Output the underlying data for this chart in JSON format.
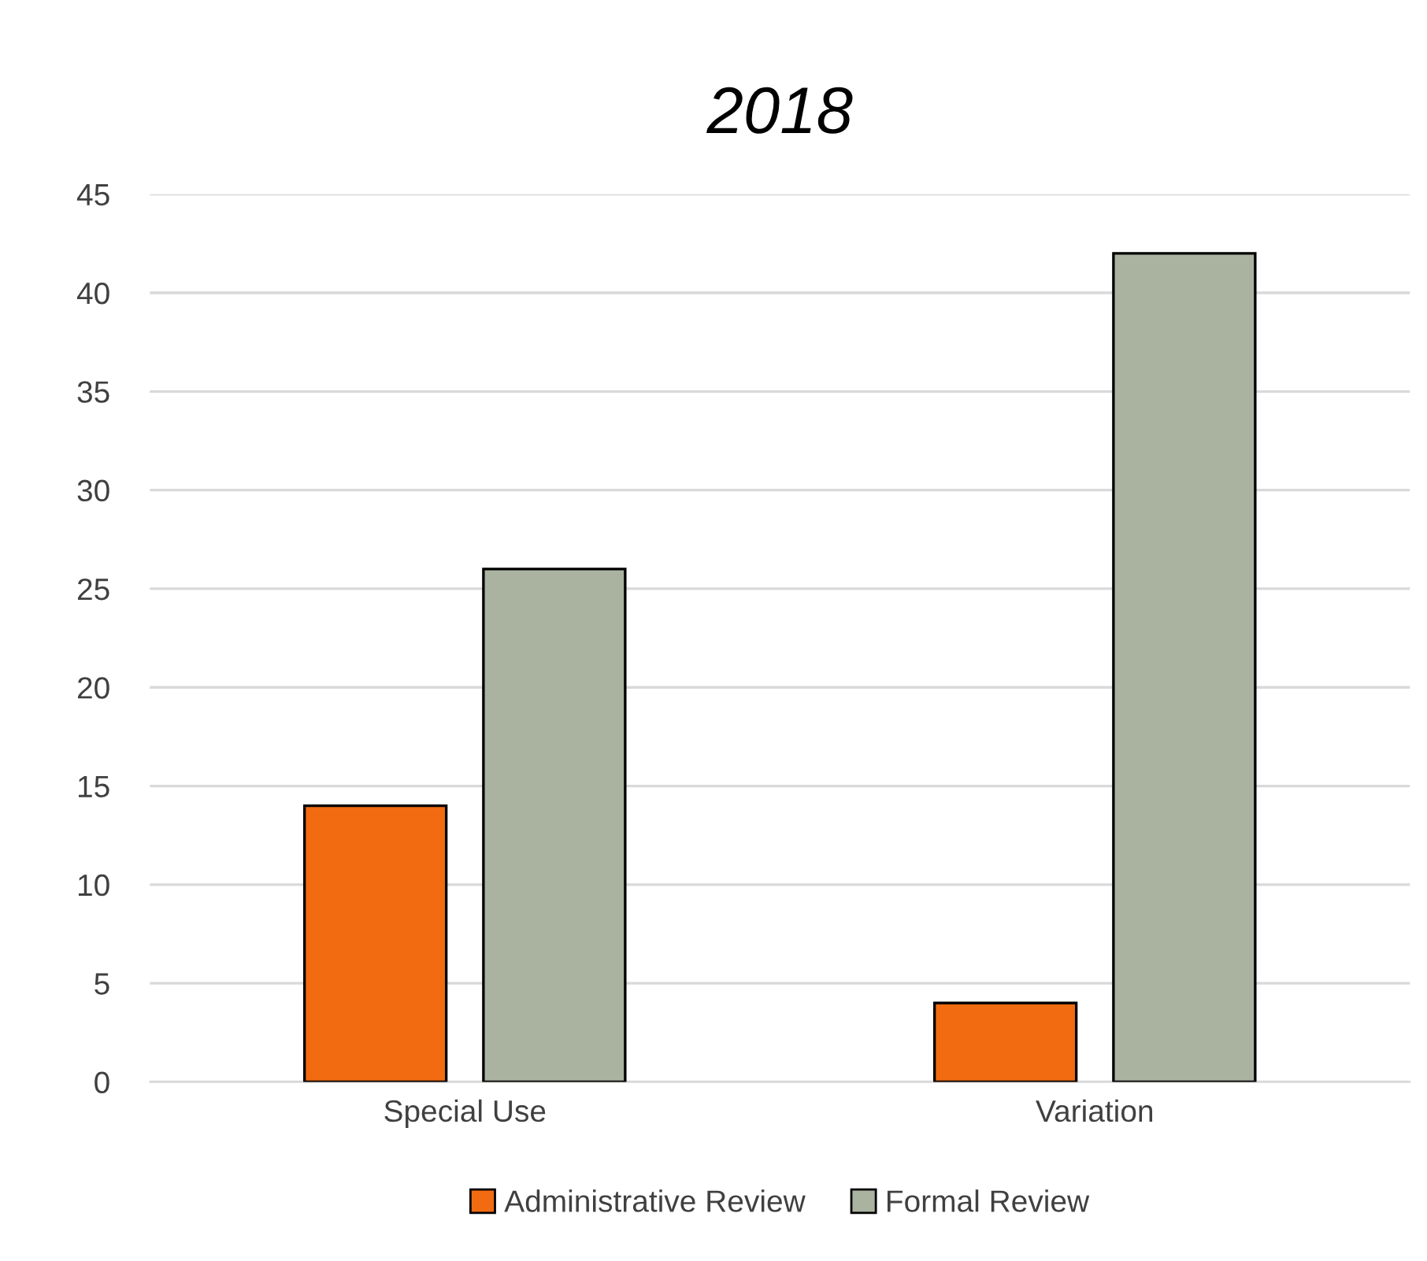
{
  "chart_data": {
    "type": "bar",
    "title": "2018",
    "categories": [
      "Special Use",
      "Variation"
    ],
    "series": [
      {
        "name": "Administrative Review",
        "color": "#f26b10",
        "values": [
          14,
          4
        ]
      },
      {
        "name": "Formal Review",
        "color": "#aab3a0",
        "values": [
          26,
          42
        ]
      }
    ],
    "ylim": [
      0,
      45
    ],
    "yticks": [
      0,
      5,
      10,
      15,
      20,
      25,
      30,
      35,
      40,
      45
    ],
    "grid": "y",
    "legend": "bottom"
  }
}
